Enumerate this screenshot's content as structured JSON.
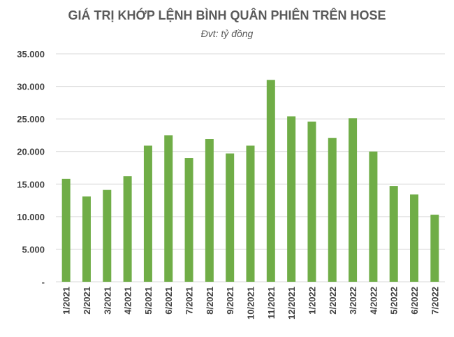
{
  "chart_data": {
    "type": "bar",
    "title": "GIÁ TRỊ KHỚP LỆNH BÌNH QUÂN PHIÊN TRÊN HOSE",
    "subtitle": "Đvt: tỷ đồng",
    "xlabel": "",
    "ylabel": "",
    "ylim": [
      0,
      35000
    ],
    "yticks": [
      "-",
      "5.000",
      "10.000",
      "15.000",
      "20.000",
      "25.000",
      "30.000",
      "35.000"
    ],
    "grid": true,
    "bar_color": "#70ad47",
    "categories": [
      "1/2021",
      "2/2021",
      "3/2021",
      "4/2021",
      "5/2021",
      "6/2021",
      "7/2021",
      "8/2021",
      "9/2021",
      "10/2021",
      "11/2021",
      "12/2021",
      "1/2022",
      "2/2022",
      "3/2022",
      "4/2022",
      "5/2022",
      "6/2022",
      "7/2022"
    ],
    "values": [
      15800,
      13100,
      14100,
      16200,
      20900,
      22500,
      19000,
      21900,
      19700,
      20900,
      31000,
      25400,
      24600,
      22100,
      25100,
      20000,
      14700,
      13400,
      10300
    ]
  }
}
